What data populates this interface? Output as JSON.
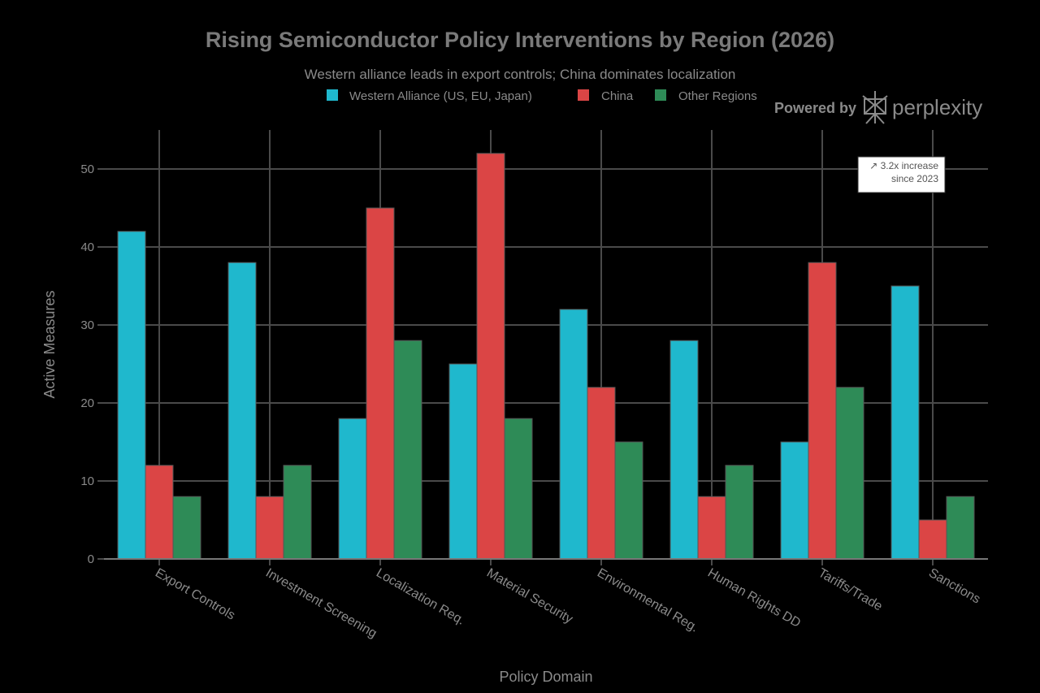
{
  "chart_data": {
    "type": "bar",
    "title": "Rising Semiconductor Policy Interventions by Region (2026)",
    "subtitle": "Western alliance leads in export controls; China dominates localization",
    "xlabel": "Policy Domain",
    "ylabel": "Active Measures",
    "ylim": [
      0,
      55
    ],
    "yticks": [
      0,
      10,
      20,
      30,
      40,
      50
    ],
    "grid": true,
    "legend_position": "top",
    "categories": [
      "Export Controls",
      "Investment Screening",
      "Localization Req.",
      "Material Security",
      "Environmental Reg.",
      "Human Rights DD",
      "Tariffs/Trade",
      "Sanctions"
    ],
    "series": [
      {
        "name": "Western Alliance (US, EU, Japan)",
        "color": "#1fb8cd",
        "values": [
          42,
          38,
          18,
          25,
          32,
          28,
          15,
          35
        ]
      },
      {
        "name": "China",
        "color": "#db4545",
        "values": [
          12,
          8,
          45,
          52,
          22,
          8,
          38,
          5
        ]
      },
      {
        "name": "Other Regions",
        "color": "#2e8b57",
        "values": [
          8,
          12,
          28,
          18,
          15,
          12,
          22,
          8
        ]
      }
    ],
    "annotation": {
      "line1": "↗ 3.2x increase",
      "line2": "since 2023"
    }
  },
  "branding": {
    "powered_by": "Powered by",
    "name": "perplexity"
  },
  "colors": {
    "background": "#000000",
    "grid": "#4a4a4a",
    "text": "#8a8a8a"
  }
}
